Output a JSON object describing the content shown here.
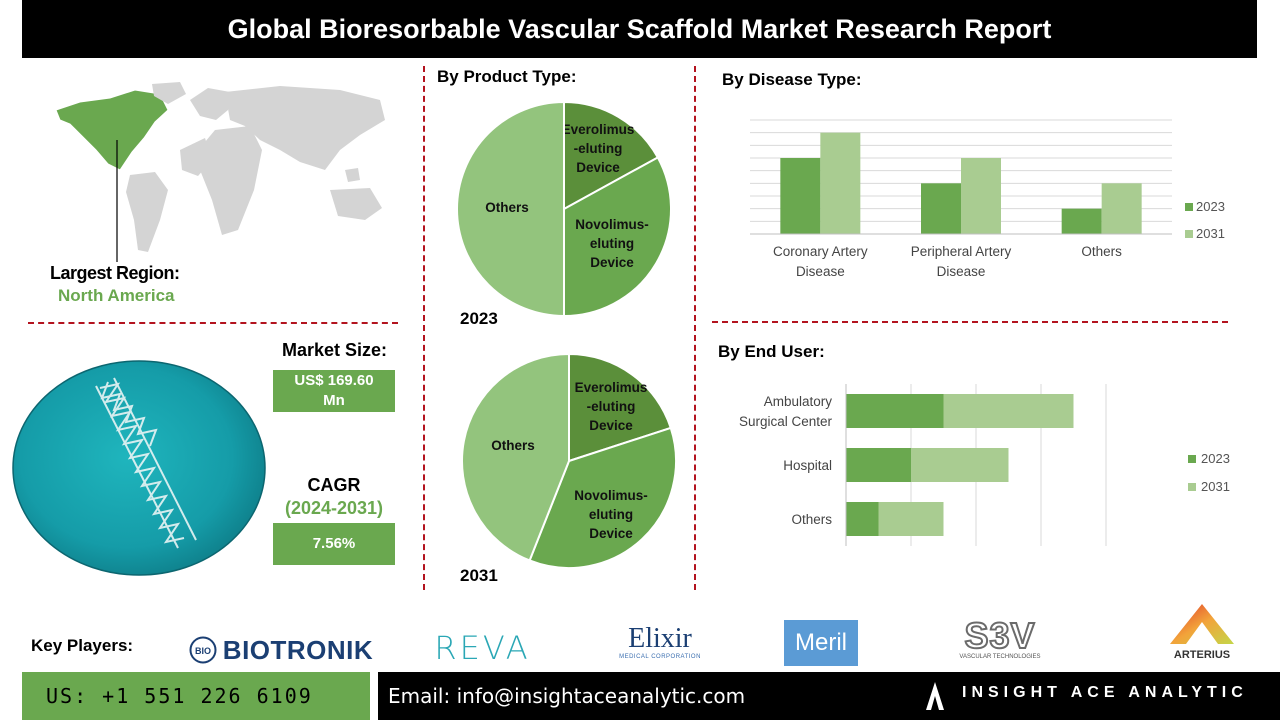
{
  "title": "Global Bioresorbable Vascular Scaffold Market Research Report",
  "region": {
    "label": "Largest Region:",
    "value": "North America"
  },
  "market_size": {
    "label": "Market Size:",
    "value_line1": "US$ 169.60",
    "value_line2": "Mn"
  },
  "cagr": {
    "label": "CAGR",
    "period": "(2024-2031)",
    "value": "7.56%"
  },
  "headings": {
    "product_type": "By Product Type:",
    "disease_type": "By Disease Type:",
    "end_user": "By End User:"
  },
  "key_players": {
    "label": "Key Players:",
    "logos": [
      "BIOTRONIK",
      "REVA",
      "Elixir",
      "MEDICAL CORPORATION",
      "Meril",
      "S3V",
      "VASCULAR TECHNOLOGIES",
      "ARTERIUS",
      "BIO"
    ]
  },
  "footer": {
    "phone": "US: +1 551 226 6109",
    "email": "Email: info@insightaceanalytic.com",
    "brand": "INSIGHT ACE ANALYTIC"
  },
  "colors": {
    "dark_green": "#5b8f3a",
    "mid_green": "#6aa84f",
    "light_green": "#9dc383",
    "red_dash": "#b3131f"
  },
  "chart_data": [
    {
      "type": "pie",
      "year": "2023",
      "slices": [
        {
          "label": "Everolimus\n-eluting\nDevice",
          "value": 17,
          "color": "#5b8f3a"
        },
        {
          "label": "Novolimus-\neluting\nDevice",
          "value": 33,
          "color": "#6aa84f"
        },
        {
          "label": "Others",
          "value": 50,
          "color": "#93c47d"
        }
      ]
    },
    {
      "type": "pie",
      "year": "2031",
      "slices": [
        {
          "label": "Everolimus\n-eluting\nDevice",
          "value": 20,
          "color": "#5b8f3a"
        },
        {
          "label": "Novolimus-\neluting\nDevice",
          "value": 36,
          "color": "#6aa84f"
        },
        {
          "label": "Others",
          "value": 44,
          "color": "#93c47d"
        }
      ]
    },
    {
      "type": "bar",
      "orientation": "vertical",
      "categories": [
        "Coronary Artery\nDisease",
        "Peripheral Artery\nDisease",
        "Others"
      ],
      "series": [
        {
          "name": "2023",
          "values": [
            3,
            2,
            1
          ],
          "color": "#6aa84f"
        },
        {
          "name": "2031",
          "values": [
            4,
            3,
            2
          ],
          "color": "#a9cc91"
        }
      ],
      "ylim": [
        0,
        4.5
      ],
      "grid": true,
      "legend": "right"
    },
    {
      "type": "bar",
      "orientation": "horizontal",
      "stacked": true,
      "categories": [
        "Ambulatory\nSurgical Center",
        "Hospital",
        "Others"
      ],
      "series": [
        {
          "name": "2023",
          "values": [
            3,
            2,
            1
          ],
          "color": "#6aa84f"
        },
        {
          "name": "2031",
          "values": [
            4,
            3,
            2
          ],
          "color": "#a9cc91"
        }
      ],
      "xlim": [
        0,
        8
      ],
      "grid": true,
      "legend": "right"
    }
  ]
}
